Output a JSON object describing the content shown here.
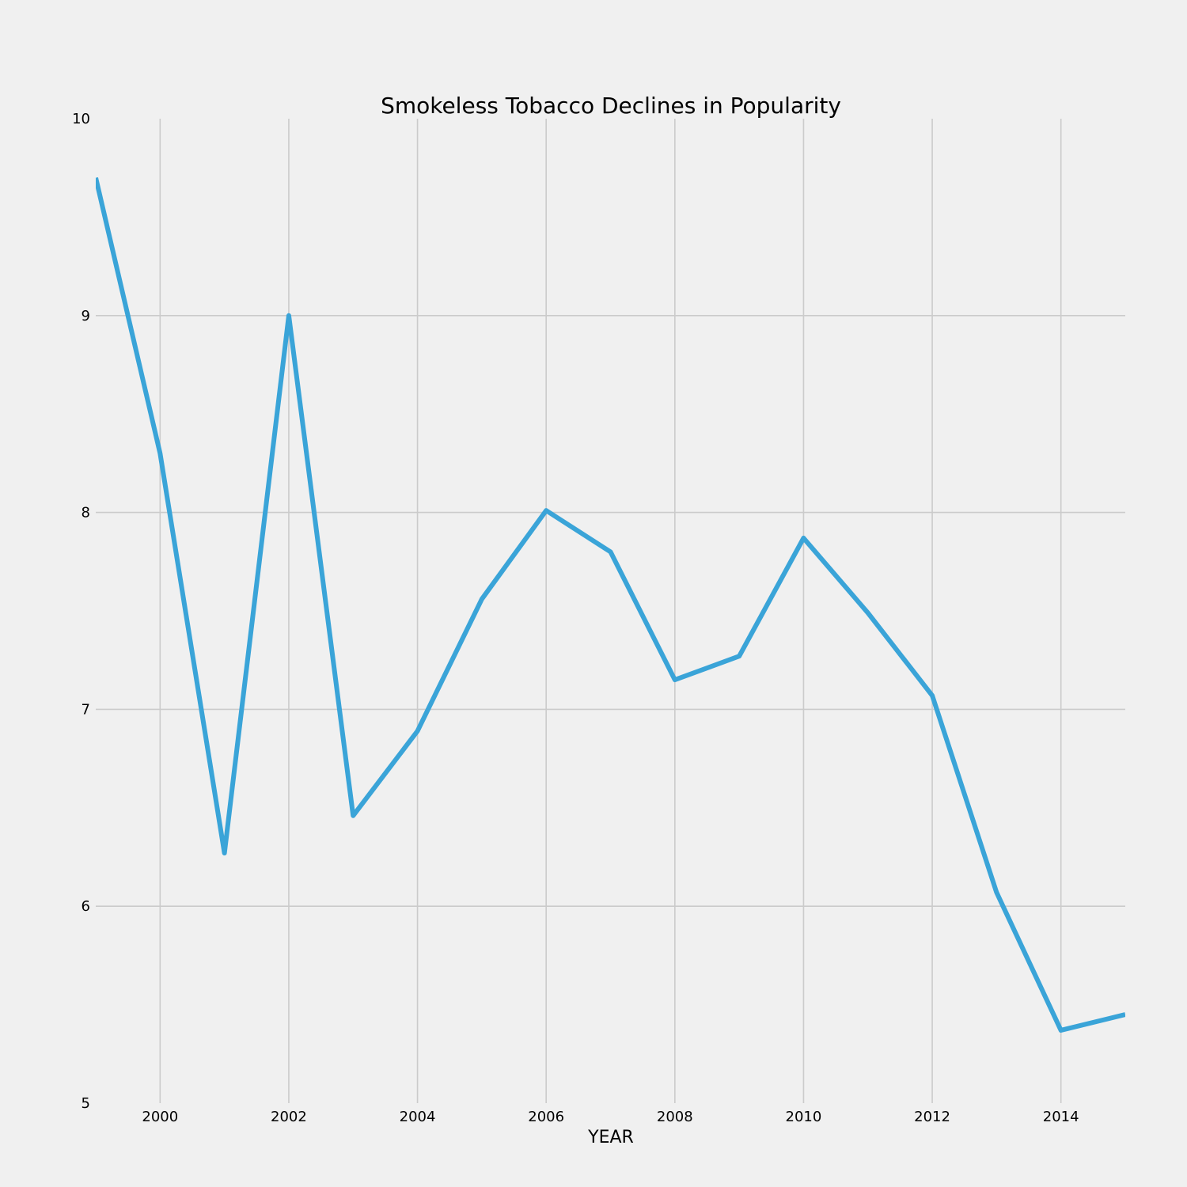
{
  "chart_data": {
    "type": "line",
    "title": "Smokeless Tobacco Declines in Popularity",
    "xlabel": "YEAR",
    "ylabel": "",
    "xlim": [
      1999,
      2015
    ],
    "ylim": [
      5,
      10
    ],
    "x_ticks": [
      2000,
      2002,
      2004,
      2006,
      2008,
      2010,
      2012,
      2014
    ],
    "y_ticks": [
      5,
      6,
      7,
      8,
      9,
      10
    ],
    "x_tick_labels": [
      "2000",
      "2002",
      "2004",
      "2006",
      "2008",
      "2010",
      "2012",
      "2014"
    ],
    "y_tick_labels": [
      "5",
      "6",
      "7",
      "8",
      "9",
      "10"
    ],
    "grid": true,
    "legend": "none",
    "colors": {
      "background": "#f0f0f0",
      "grid": "#cbcbcb",
      "line": "#3aa4d8",
      "text": "#000000"
    },
    "x": [
      1999,
      2000,
      2001,
      2002,
      2003,
      2004,
      2005,
      2006,
      2007,
      2008,
      2009,
      2010,
      2011,
      2012,
      2013,
      2014,
      2015
    ],
    "series": [
      {
        "values": [
          9.7,
          8.3,
          6.27,
          9.0,
          6.46,
          6.89,
          7.56,
          8.01,
          7.8,
          7.15,
          7.27,
          7.87,
          7.49,
          7.07,
          6.07,
          5.37,
          5.45
        ]
      }
    ]
  }
}
